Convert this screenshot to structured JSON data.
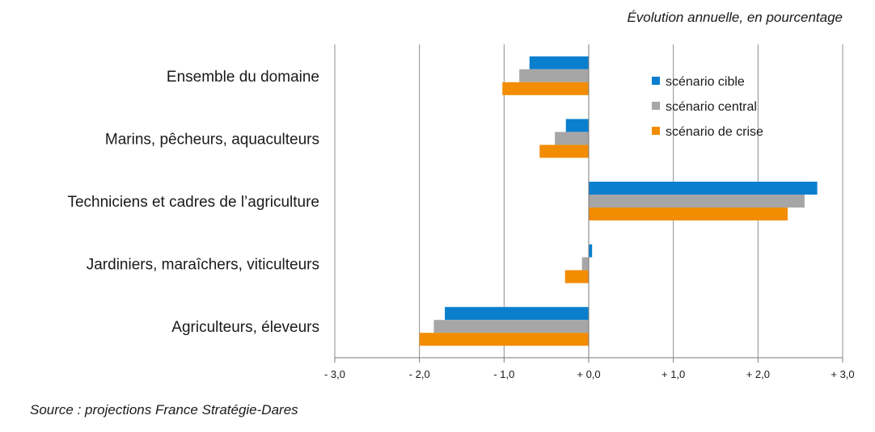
{
  "header_note": "Évolution annuelle, en pourcentage",
  "source": "Source : projections France Stratégie-Dares",
  "chart_data": {
    "type": "bar",
    "orientation": "horizontal",
    "categories": [
      "Ensemble du domaine",
      "Marins, pêcheurs, aquaculteurs",
      "Techniciens et cadres de l’agriculture",
      "Jardiniers, maraîchers, viticulteurs",
      "Agriculteurs, éleveurs"
    ],
    "series": [
      {
        "name": "scénario cible",
        "color": "#0a7fcd",
        "values": [
          -0.7,
          -0.27,
          2.7,
          0.04,
          -1.7
        ]
      },
      {
        "name": "scénario central",
        "color": "#a6a6a6",
        "values": [
          -0.82,
          -0.4,
          2.55,
          -0.08,
          -1.83
        ]
      },
      {
        "name": "scénario de crise",
        "color": "#f28c00",
        "values": [
          -1.02,
          -0.58,
          2.35,
          -0.28,
          -2.0
        ]
      }
    ],
    "xlim": [
      -3.0,
      3.0
    ],
    "xticks": [
      -3,
      -2,
      -1,
      0,
      1,
      2,
      3
    ],
    "xtick_labels": [
      "- 3,0",
      "- 2,0",
      "- 1,0",
      "+ 0,0",
      "+ 1,0",
      "+ 2,0",
      "+ 3,0"
    ],
    "grid": "vertical",
    "legend_position": "top-right inside"
  }
}
